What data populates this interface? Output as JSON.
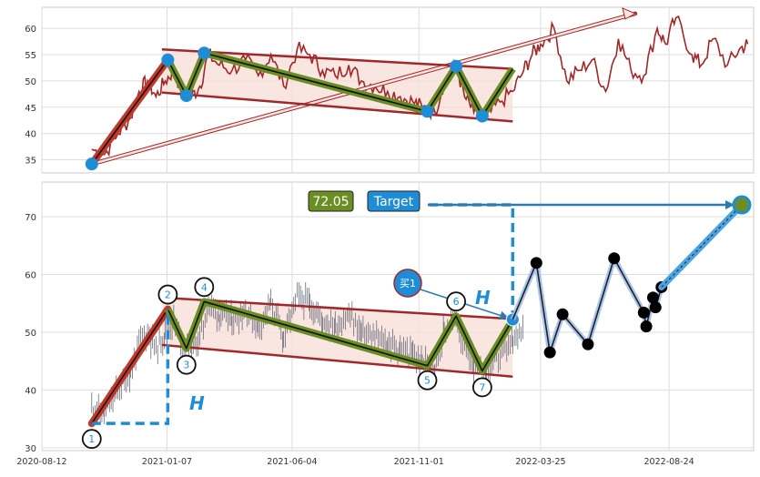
{
  "chart_data": [
    {
      "type": "line",
      "panel": "top",
      "y_ticks": [
        35,
        40,
        45,
        50,
        55,
        60
      ],
      "ylim": [
        32.5,
        64
      ],
      "xlim": [
        "2020-08-12",
        "2022-12-02"
      ],
      "grid": true,
      "series": [
        {
          "color": "#a0282a",
          "x": [
            "2020-10-10",
            "2020-10-25",
            "2020-11-10",
            "2020-11-25",
            "2020-12-05",
            "2020-12-15",
            "2020-12-25",
            "2021-01-05",
            "2021-01-15",
            "2021-01-25",
            "2021-02-05",
            "2021-02-15",
            "2021-02-25",
            "2021-03-10",
            "2021-03-25",
            "2021-04-10",
            "2021-04-25",
            "2021-05-10",
            "2021-05-25",
            "2021-06-10",
            "2021-06-25",
            "2021-07-10",
            "2021-07-25",
            "2021-08-10",
            "2021-08-25",
            "2021-09-10",
            "2021-09-25",
            "2021-10-10",
            "2021-10-25",
            "2021-11-05",
            "2021-11-20",
            "2021-12-01",
            "2021-12-15",
            "2021-12-25",
            "2022-01-05",
            "2022-01-20",
            "2022-02-05",
            "2022-02-20",
            "2022-03-05",
            "2022-03-15",
            "2022-03-25",
            "2022-04-10",
            "2022-04-25",
            "2022-05-10",
            "2022-05-25",
            "2022-06-10",
            "2022-06-25",
            "2022-07-10",
            "2022-07-25",
            "2022-08-10",
            "2022-08-20",
            "2022-09-01",
            "2022-09-20",
            "2022-10-01",
            "2022-10-15",
            "2022-11-01",
            "2022-11-15",
            "2022-11-25"
          ],
          "y": [
            37,
            36,
            40,
            43,
            48,
            50,
            47,
            50,
            52,
            48,
            47,
            49,
            55,
            53,
            52,
            54,
            51,
            55,
            49,
            56,
            55,
            52,
            51,
            53,
            50,
            49,
            48,
            47,
            46,
            45,
            44,
            50,
            53,
            47,
            44,
            43,
            46,
            48,
            52,
            55,
            57,
            60,
            50,
            52,
            54,
            48,
            58,
            52,
            51,
            60,
            57,
            62,
            55,
            53,
            58,
            53,
            56,
            57
          ]
        }
      ],
      "pattern": {
        "points": [
          {
            "x": "2020-10-10",
            "y": 34.2
          },
          {
            "x": "2021-01-08",
            "y": 54
          },
          {
            "x": "2021-01-30",
            "y": 47.2
          },
          {
            "x": "2021-02-20",
            "y": 55.3
          },
          {
            "x": "2021-11-11",
            "y": 44.2
          },
          {
            "x": "2021-12-15",
            "y": 52.8
          },
          {
            "x": "2022-01-15",
            "y": 43.3
          },
          {
            "x": "2022-02-20",
            "y": 52.3
          }
        ],
        "upper_channel": [
          {
            "x": "2021-01-01",
            "y": 56
          },
          {
            "x": "2022-02-20",
            "y": 52.3
          }
        ],
        "lower_channel": [
          {
            "x": "2021-01-01",
            "y": 47.8
          },
          {
            "x": "2022-02-20",
            "y": 42.3
          }
        ],
        "arrow": [
          {
            "x": "2020-10-10",
            "y": 34.2
          },
          {
            "x": "2022-07-15",
            "y": 62.8
          }
        ]
      }
    },
    {
      "type": "line",
      "panel": "bottom",
      "x_tick_labels": [
        "2020-08-12",
        "2021-01-07",
        "2021-06-04",
        "2021-11-01",
        "2022-03-25",
        "2022-08-24"
      ],
      "y_ticks": [
        30,
        40,
        50,
        60,
        70
      ],
      "ylim": [
        29.5,
        76
      ],
      "xlim": [
        "2020-08-12",
        "2022-12-02"
      ],
      "grid": true,
      "annotations": {
        "value_box": "72.05",
        "target_box": "Target",
        "buy_marker": "买1",
        "h_label": "H",
        "point_labels": [
          "1",
          "2",
          "3",
          "4",
          "5",
          "6",
          "7"
        ]
      },
      "pattern": {
        "points": [
          {
            "label": "1",
            "x": "2020-10-10",
            "y": 34.2
          },
          {
            "label": "2",
            "x": "2021-01-08",
            "y": 54
          },
          {
            "label": "3",
            "x": "2021-01-30",
            "y": 47.2
          },
          {
            "label": "4",
            "x": "2021-02-20",
            "y": 55.3
          },
          {
            "label": "5",
            "x": "2021-11-11",
            "y": 44.2
          },
          {
            "label": "6",
            "x": "2021-12-15",
            "y": 52.8
          },
          {
            "label": "7",
            "x": "2022-01-15",
            "y": 43.3
          }
        ],
        "breakout": {
          "x": "2022-02-20",
          "y": 52.2
        },
        "target": {
          "x": "2022-11-18",
          "y": 72.05
        },
        "upper_channel": [
          {
            "x": "2021-01-01",
            "y": 56
          },
          {
            "x": "2022-02-20",
            "y": 52.3
          }
        ],
        "lower_channel": [
          {
            "x": "2021-01-01",
            "y": 47.8
          },
          {
            "x": "2022-02-20",
            "y": 42.3
          }
        ]
      },
      "projection": {
        "x": [
          "2022-02-20",
          "2022-03-20",
          "2022-04-05",
          "2022-04-20",
          "2022-05-20",
          "2022-06-20",
          "2022-07-25",
          "2022-07-28",
          "2022-08-05",
          "2022-08-08",
          "2022-08-15"
        ],
        "y": [
          52.2,
          62,
          46.5,
          53.1,
          47.9,
          62.8,
          53.4,
          51,
          56,
          54.3,
          57.8
        ]
      }
    }
  ]
}
